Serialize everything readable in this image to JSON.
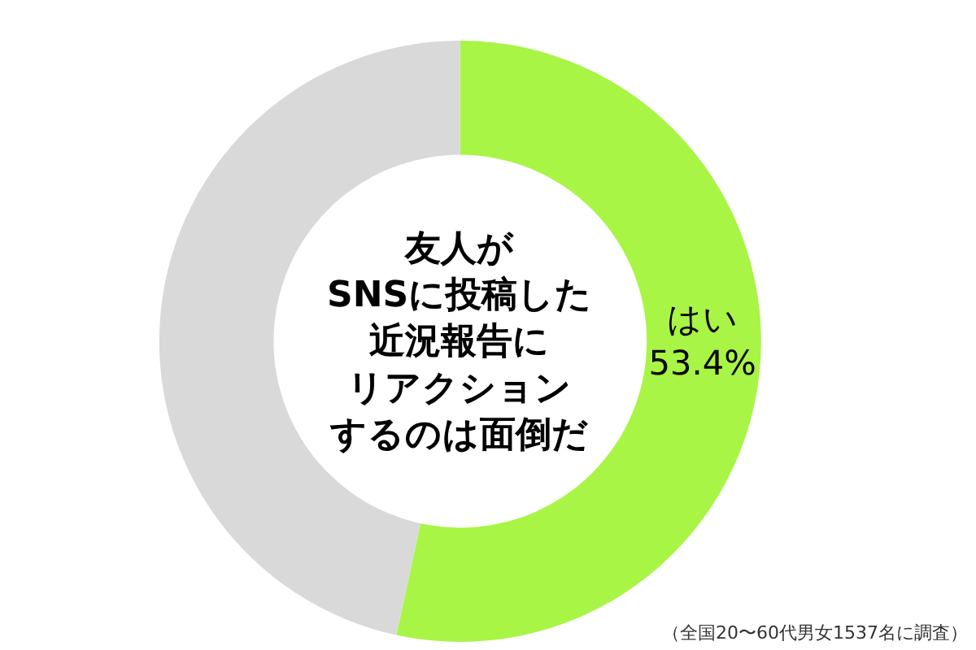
{
  "chart_data": {
    "type": "donut",
    "title": "友人がSNSに投稿した近況報告にリアクションするのは面倒だ",
    "categories": [
      "はい",
      null
    ],
    "values": [
      53.4,
      46.6
    ],
    "value_labels": [
      "53.4%",
      null
    ],
    "colors": [
      "#a8f545",
      "#d9d9d9"
    ],
    "annotations": [
      "（全国20〜60代男女1537名に調査）"
    ]
  }
}
